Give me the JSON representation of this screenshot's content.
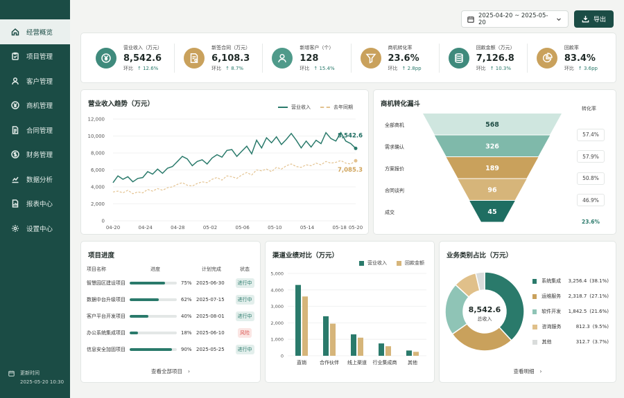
{
  "nav": {
    "items": [
      {
        "label": "经营概览",
        "icon": "home-icon",
        "active": true
      },
      {
        "label": "项目管理",
        "icon": "clipboard-icon"
      },
      {
        "label": "客户管理",
        "icon": "user-icon"
      },
      {
        "label": "商机管理",
        "icon": "yen-circle-icon"
      },
      {
        "label": "合同管理",
        "icon": "document-icon"
      },
      {
        "label": "财务管理",
        "icon": "coin-icon"
      },
      {
        "label": "数据分析",
        "icon": "chart-icon"
      },
      {
        "label": "报表中心",
        "icon": "report-icon"
      },
      {
        "label": "设置中心",
        "icon": "gear-icon"
      }
    ],
    "update_label": "更新时间",
    "update_time": "2025-05-20 10:30"
  },
  "topbar": {
    "date_range": "2025-04-20 ~ 2025-05-20",
    "export_label": "导出"
  },
  "kpis": [
    {
      "label": "营业收入（万元）",
      "value": "8,542.6",
      "cmp_label": "环比",
      "change": "12.6%",
      "icon": "yen-icon",
      "color": "#3f8a7c"
    },
    {
      "label": "新签合同（万元）",
      "value": "6,108.3",
      "cmp_label": "环比",
      "change": "8.7%",
      "icon": "contract-icon",
      "color": "#c9a15c"
    },
    {
      "label": "新增客户（个）",
      "value": "128",
      "cmp_label": "环比",
      "change": "15.4%",
      "icon": "user-icon",
      "color": "#4f9a8a"
    },
    {
      "label": "商机转化率",
      "value": "23.6%",
      "cmp_label": "环比",
      "change": "2.8pp",
      "icon": "funnel-icon",
      "color": "#c9a15c"
    },
    {
      "label": "回款金额（万元）",
      "value": "7,126.8",
      "cmp_label": "环比",
      "change": "10.3%",
      "icon": "database-icon",
      "color": "#3f8a7c"
    },
    {
      "label": "回款率",
      "value": "83.4%",
      "cmp_label": "环比",
      "change": "3.6pp",
      "icon": "pie-icon",
      "color": "#c9a15c"
    }
  ],
  "trend": {
    "title": "营业收入趋势（万元）",
    "legend": [
      "营业收入",
      "去年同期"
    ],
    "colors": [
      "#2a7a6b",
      "#e3c28f"
    ],
    "end_labels": [
      "8,542.6",
      "7,085.3"
    ]
  },
  "chart_data": [
    {
      "type": "line",
      "title": "营业收入趋势（万元）",
      "ylim": [
        0,
        12000
      ],
      "yticks": [
        "0",
        "2,000",
        "4,000",
        "6,000",
        "8,000",
        "10,000",
        "12,000"
      ],
      "xticks": [
        "04-20",
        "04-24",
        "04-28",
        "05-02",
        "05-06",
        "05-10",
        "05-14",
        "05-18",
        "05-20"
      ],
      "xtick_pos": [
        0,
        4,
        8,
        12,
        16,
        20,
        24,
        28,
        30
      ],
      "series": [
        {
          "name": "营业收入",
          "values": [
            4500,
            5300,
            4900,
            5200,
            4600,
            5000,
            5100,
            5800,
            5500,
            6100,
            5600,
            6200,
            6400,
            7000,
            7600,
            7300,
            6500,
            7000,
            7200,
            6700,
            7400,
            7800,
            7500,
            8300,
            8400,
            7600,
            8200,
            8800,
            7900,
            9500,
            8600,
            9800,
            9200,
            9900,
            9000,
            9600,
            10300,
            9500,
            8600,
            9400,
            8700,
            9500,
            9100,
            10400,
            9700,
            9400,
            10400,
            9400,
            9100,
            8543
          ]
        },
        {
          "name": "去年同期",
          "values": [
            3400,
            3500,
            3300,
            3600,
            3200,
            3400,
            3300,
            3700,
            3500,
            3800,
            3600,
            3900,
            4000,
            4300,
            4500,
            4200,
            4100,
            4400,
            4600,
            4500,
            4900,
            5100,
            4800,
            5300,
            5200,
            5000,
            5400,
            5700,
            5400,
            6000,
            5900,
            6100,
            5800,
            6300,
            6100,
            6500,
            6700,
            6400,
            6300,
            6600,
            6500,
            6800,
            6600,
            7000,
            6800,
            6900,
            7100,
            6800,
            6700,
            7085
          ]
        }
      ]
    },
    {
      "type": "funnel",
      "title": "商机转化漏斗",
      "rate_header": "转化率",
      "categories": [
        "全部商机",
        "需求确认",
        "方案报价",
        "合同谈判",
        "成交"
      ],
      "values": [
        568,
        326,
        189,
        96,
        45
      ],
      "rates": [
        "57.4%",
        "57.9%",
        "50.8%",
        "46.9%",
        "23.6%"
      ],
      "colors": [
        "#cfe6df",
        "#7fb9aa",
        "#c9a15c",
        "#d6b57a",
        "#1f6e62"
      ]
    },
    {
      "type": "bar",
      "title": "渠道业绩对比（万元）",
      "ylim": [
        0,
        5000
      ],
      "yticks": [
        "0",
        "1,000",
        "2,000",
        "3,000",
        "4,000",
        "5,000"
      ],
      "categories": [
        "直销",
        "合作伙伴",
        "线上渠道",
        "行业集成商",
        "其他"
      ],
      "series": [
        {
          "name": "营业收入",
          "values": [
            4300,
            2400,
            1300,
            750,
            320
          ],
          "color": "#2a7a6b"
        },
        {
          "name": "回款金额",
          "values": [
            3600,
            1950,
            1100,
            580,
            240
          ],
          "color": "#d6b57a"
        }
      ]
    },
    {
      "type": "pie",
      "title": "业务类别占比（万元）",
      "center_value": "8,542.6",
      "center_label": "总收入",
      "categories": [
        "系统集成",
        "运维服务",
        "软件开发",
        "咨询服务",
        "其他"
      ],
      "values": [
        3256.4,
        2318.7,
        1842.5,
        812.3,
        312.7
      ],
      "value_labels": [
        "3,256.4",
        "2,318.7",
        "1,842.5",
        "812.3",
        "312.7"
      ],
      "percents": [
        "(38.1%)",
        "(27.1%)",
        "(21.6%)",
        "(9.5%)",
        "(3.7%)"
      ],
      "colors": [
        "#2a7a6b",
        "#c9a15c",
        "#8fc4b6",
        "#e0c08a",
        "#d9dcdb"
      ]
    }
  ],
  "projects": {
    "title": "项目进度",
    "headers": [
      "项目名称",
      "进度",
      "计划完成",
      "状态"
    ],
    "rows": [
      {
        "name": "智慧园区建设项目",
        "progress": 0.75,
        "pct": "75%",
        "date": "2025-06-30",
        "status": "进行中",
        "risk": false
      },
      {
        "name": "数据中台升级项目",
        "progress": 0.62,
        "pct": "62%",
        "date": "2025-07-15",
        "status": "进行中",
        "risk": false
      },
      {
        "name": "客户平台开发项目",
        "progress": 0.4,
        "pct": "40%",
        "date": "2025-08-01",
        "status": "进行中",
        "risk": false
      },
      {
        "name": "办公系统集成项目",
        "progress": 0.18,
        "pct": "18%",
        "date": "2025-06-10",
        "status": "风险",
        "risk": true
      },
      {
        "name": "信息安全加固项目",
        "progress": 0.9,
        "pct": "90%",
        "date": "2025-05-25",
        "status": "进行中",
        "risk": false
      }
    ],
    "more": "查看全部项目"
  },
  "channel": {
    "title": "渠道业绩对比（万元）",
    "legend": [
      "营业收入",
      "回款金额"
    ]
  },
  "category": {
    "title": "业务类别占比（万元）",
    "more": "查看明细"
  }
}
